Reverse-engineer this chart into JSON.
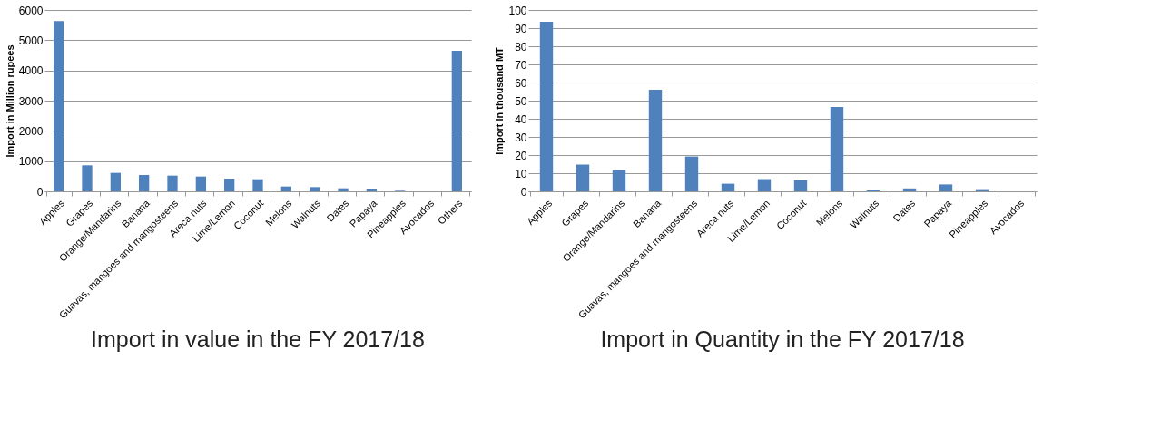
{
  "chart_data": [
    {
      "type": "bar",
      "title": "Import in value in the FY 2017/18",
      "ylabel": "Import in Million rupees",
      "categories": [
        "Apples",
        "Grapes",
        "Orange/Mandarins",
        "Banana",
        "Guavas, mangoes and mangosteens",
        "Areca nuts",
        "Lime/Lemon",
        "Coconut",
        "Melons",
        "Walnuts",
        "Dates",
        "Papaya",
        "Pineapples",
        "Avocados",
        "Others"
      ],
      "values": [
        5630,
        860,
        610,
        540,
        520,
        490,
        420,
        400,
        160,
        140,
        100,
        90,
        20,
        0,
        4650
      ],
      "color": "#4f81bd",
      "ylim": [
        0,
        6000
      ],
      "yticks": [
        0,
        1000,
        2000,
        3000,
        4000,
        5000,
        6000
      ],
      "grid": "y"
    },
    {
      "type": "bar",
      "title": "Import in Quantity in the FY 2017/18",
      "ylabel": "Import in thousand MT",
      "categories": [
        "Apples",
        "Grapes",
        "Orange/Mandarins",
        "Banana",
        "Guavas, mangoes and mangosteens",
        "Areca nuts",
        "Lime/Lemon",
        "Coconut",
        "Melons",
        "Walnuts",
        "Dates",
        "Papaya",
        "Pineapples",
        "Avocados"
      ],
      "values": [
        93.5,
        14.8,
        11.7,
        56,
        19.2,
        4.2,
        6.8,
        6.2,
        46.5,
        0.5,
        1.6,
        3.8,
        1.2,
        0
      ],
      "color": "#4f81bd",
      "ylim": [
        0,
        100
      ],
      "yticks": [
        0,
        10,
        20,
        30,
        40,
        50,
        60,
        70,
        80,
        90,
        100
      ],
      "grid": "y"
    }
  ]
}
